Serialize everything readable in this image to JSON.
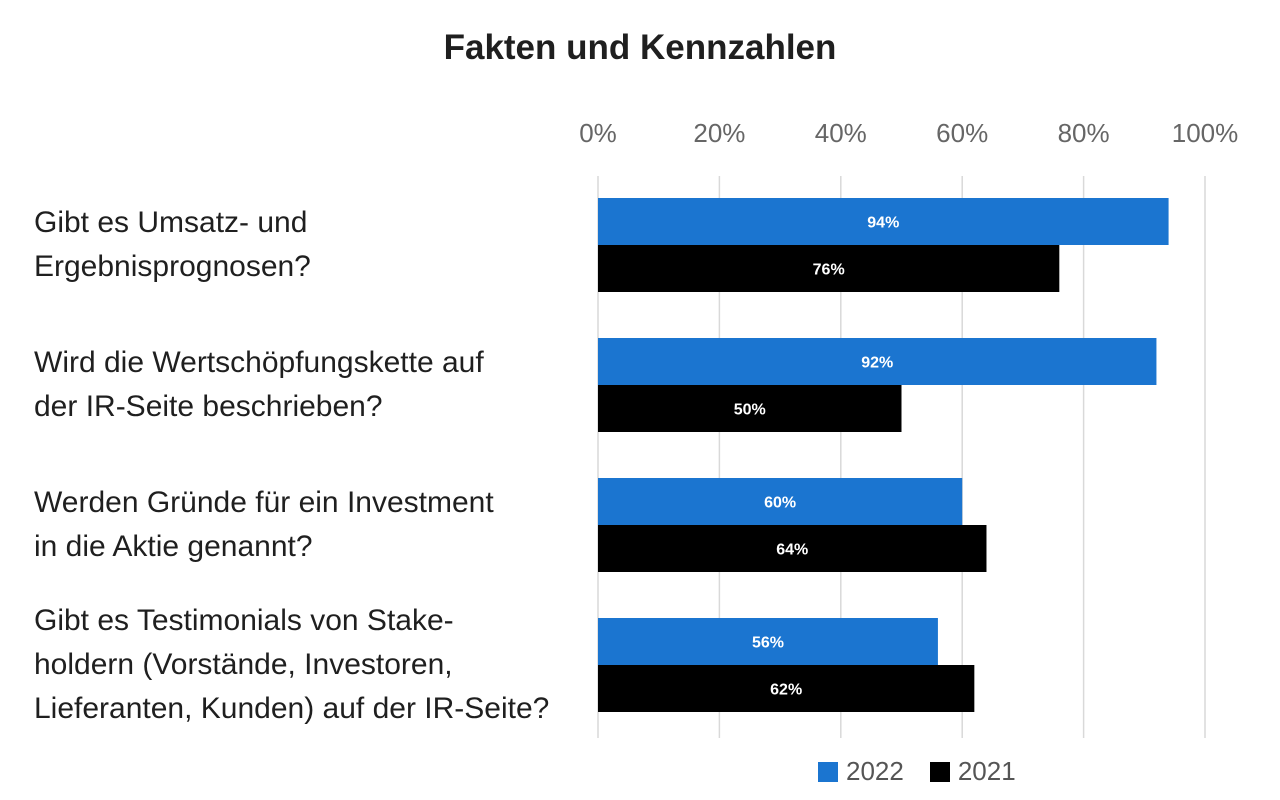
{
  "chart_data": {
    "type": "bar",
    "orientation": "horizontal",
    "title": "Fakten und Kennzahlen",
    "categories": [
      "Gibt es Umsatz- und\nErgebnisprognosen?",
      "Wird die Wertschöpfungskette auf\nder IR-Seite beschrieben?",
      "Werden Gründe für ein Investment\nin die Aktie genannt?",
      "Gibt es Testimonials von Stake-\nholdern (Vorstände, Investoren,\nLieferanten, Kunden) auf der IR-Seite?"
    ],
    "series": [
      {
        "name": "2022",
        "color": "#1b75d0",
        "values": [
          94,
          92,
          60,
          56
        ],
        "labels": [
          "94%",
          "92%",
          "60%",
          "56%"
        ]
      },
      {
        "name": "2021",
        "color": "#000000",
        "values": [
          76,
          50,
          64,
          62
        ],
        "labels": [
          "76%",
          "50%",
          "64%",
          "62%"
        ]
      }
    ],
    "xlim": [
      0,
      100
    ],
    "xticks": [
      "0%",
      "20%",
      "40%",
      "60%",
      "80%",
      "100%"
    ],
    "grid": true,
    "legend_position": "bottom-right",
    "xlabel": "",
    "ylabel": ""
  }
}
